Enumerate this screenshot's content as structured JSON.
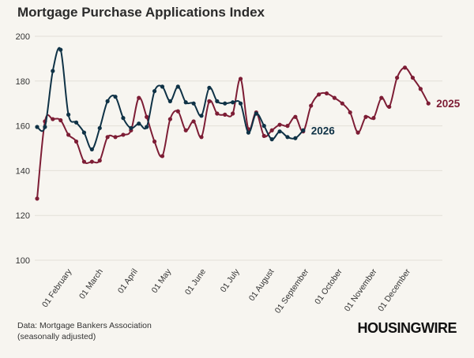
{
  "title": "Mortgage Purchase Applications Index",
  "source_line1": "Data: Mortgage Bankers Association",
  "source_line2": "(seasonally adjusted)",
  "brand": "HOUSINGWIRE",
  "colors": {
    "background": "#f7f5f0",
    "grid": "#e3e0d8",
    "series_2025": "#7d1d35",
    "series_2026": "#0f3246"
  },
  "chart_data": {
    "type": "line",
    "title": "Mortgage Purchase Applications Index",
    "xlabel": "",
    "ylabel": "",
    "ylim": [
      100,
      200
    ],
    "yticks": [
      100,
      120,
      140,
      160,
      180,
      200
    ],
    "grid": true,
    "x_unit": "week of year (day offset from 01 January)",
    "x_ticks": [
      {
        "label": "01 February",
        "day": 31
      },
      {
        "label": "01 March",
        "day": 59
      },
      {
        "label": "01 April",
        "day": 90
      },
      {
        "label": "01 May",
        "day": 120
      },
      {
        "label": "01 June",
        "day": 151
      },
      {
        "label": "01 July",
        "day": 181
      },
      {
        "label": "01 August",
        "day": 212
      },
      {
        "label": "01 September",
        "day": 243
      },
      {
        "label": "01 October",
        "day": 273
      },
      {
        "label": "01 November",
        "day": 304
      },
      {
        "label": "01 December",
        "day": 334
      }
    ],
    "series": [
      {
        "name": "2025",
        "color": "#7d1d35",
        "start_day": 0,
        "step_days": 7,
        "values": [
          127.5,
          162,
          163,
          162.5,
          156,
          153,
          144,
          144,
          144.5,
          155,
          155,
          156,
          158,
          172.5,
          164,
          153,
          146.5,
          163,
          166.5,
          158,
          162,
          155,
          171,
          165.5,
          165,
          165.5,
          181,
          158.5,
          166,
          155.5,
          158,
          160.5,
          160,
          164,
          157.5,
          169,
          174,
          174.5,
          172.5,
          170,
          166,
          157,
          164,
          163.5,
          172.5,
          168.5,
          181.5,
          186,
          181.5,
          176.5,
          170
        ]
      },
      {
        "name": "2026",
        "color": "#0f3246",
        "start_day": 0,
        "step_days": 7,
        "values": [
          159.5,
          159.5,
          184.5,
          194,
          165,
          161.5,
          157,
          149.5,
          159,
          171,
          173,
          163.5,
          159,
          161,
          159.5,
          175.5,
          177.5,
          171,
          177.5,
          170.5,
          170,
          164.5,
          177,
          171,
          170,
          170.5,
          170,
          157,
          165.5,
          160,
          154,
          157.5,
          155,
          154.5,
          158
        ]
      }
    ]
  }
}
